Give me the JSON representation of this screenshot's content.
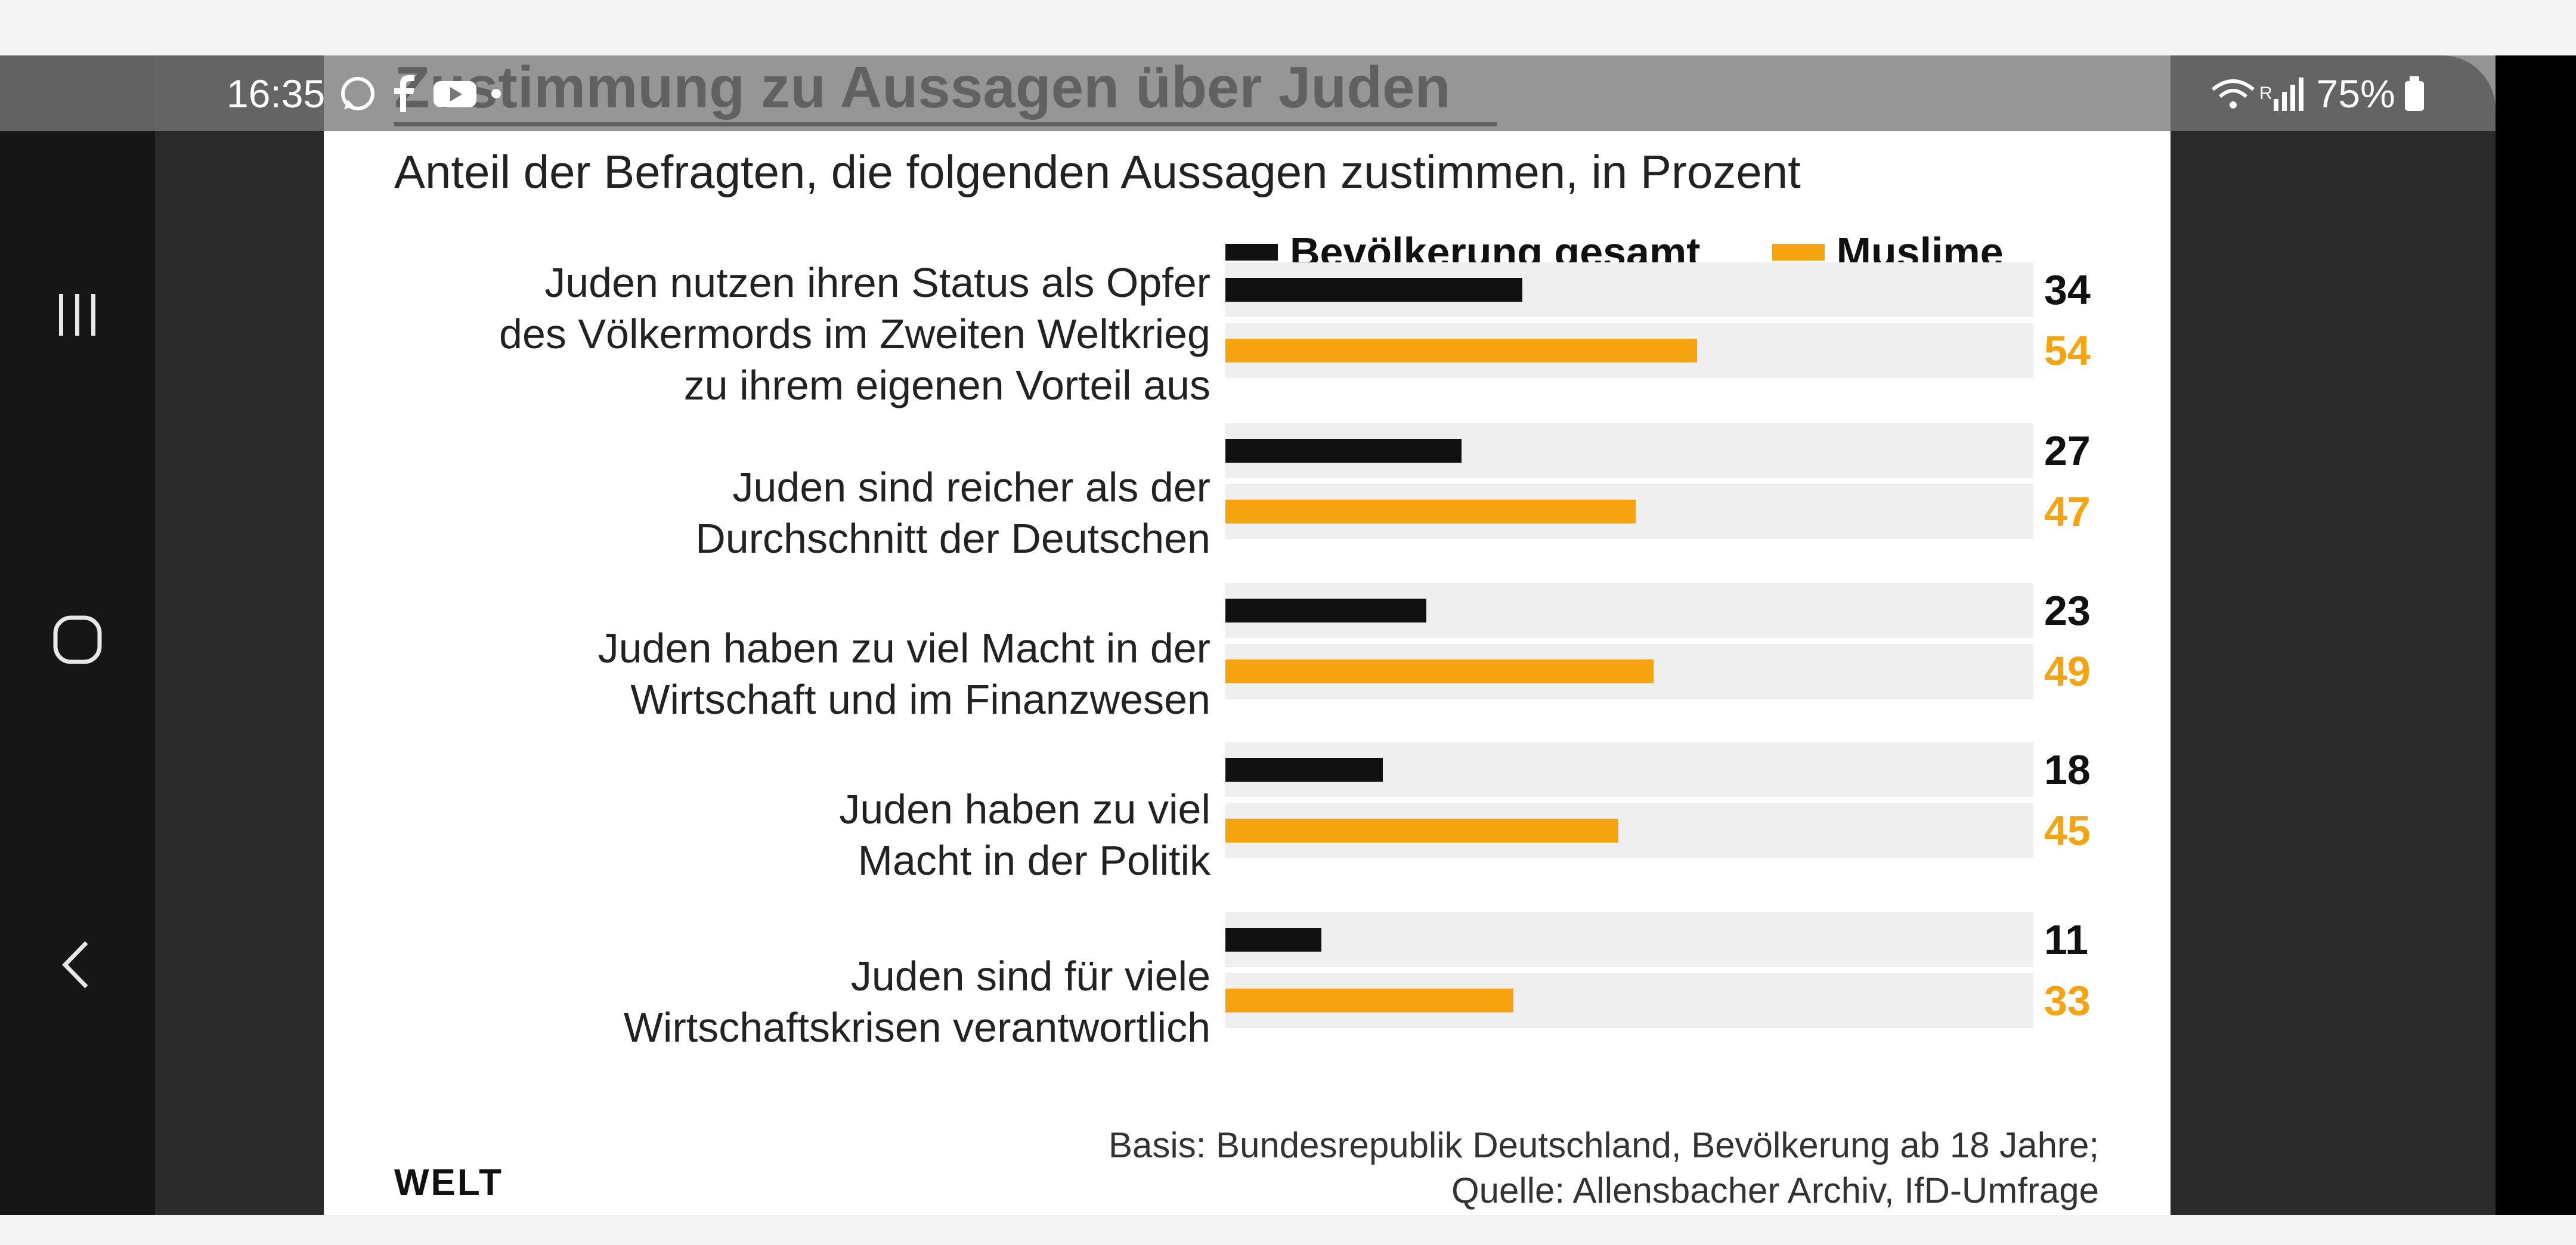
{
  "status_bar": {
    "time": "16:35",
    "battery": "75%",
    "signal_glyph": "R"
  },
  "colors": {
    "total": "#111111",
    "muslims": "#f5a30f",
    "track": "#efefef"
  },
  "chart_data": {
    "type": "bar",
    "orientation": "horizontal",
    "title": "Zustimmung zu Aussagen über Juden",
    "subtitle": "Anteil der Befragten, die folgenden Aussagen zustimmen, in Prozent",
    "categories": [
      [
        "Juden nutzen ihren Status als Opfer",
        "des Völkermords im Zweiten Weltkrieg",
        "zu ihrem eigenen Vorteil aus"
      ],
      [
        "Juden sind reicher als der",
        "Durchschnitt der Deutschen"
      ],
      [
        "Juden haben zu viel Macht in der",
        "Wirtschaft und im Finanzwesen"
      ],
      [
        "Juden haben zu viel",
        "Macht in der Politik"
      ],
      [
        "Juden sind für viele",
        "Wirtschaftskrisen verantwortlich"
      ]
    ],
    "series": [
      {
        "name": "Bevölkerung gesamt",
        "values": [
          34,
          27,
          23,
          18,
          11
        ]
      },
      {
        "name": "Muslime",
        "values": [
          54,
          47,
          49,
          45,
          33
        ]
      }
    ],
    "xlim": [
      0,
      100
    ],
    "grid": false,
    "legend_position": "top-right",
    "source_lines": [
      "Basis: Bundesrepublik Deutschland, Bevölkerung ab 18 Jahre;",
      "Quelle: Allensbacher Archiv, IfD-Umfrage"
    ],
    "brand": "WELT"
  }
}
